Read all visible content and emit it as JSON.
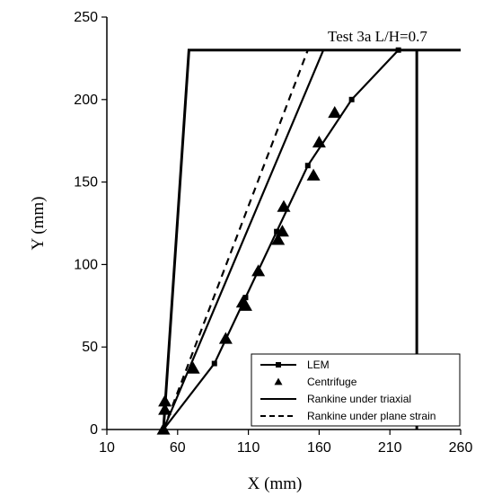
{
  "chart_data": {
    "type": "line",
    "title": "",
    "annotation": "Test 3a L/H=0.7",
    "xlabel": "X (mm)",
    "ylabel": "Y (mm)",
    "xlim": [
      10,
      260
    ],
    "ylim": [
      0,
      250
    ],
    "xticks": [
      "10",
      "60",
      "110",
      "160",
      "210",
      "260"
    ],
    "yticks": [
      "0",
      "50",
      "100",
      "150",
      "200",
      "250"
    ],
    "grid": false,
    "legend_position": "bottom-right",
    "series": [
      {
        "name": "LEM",
        "style": "solid-square-markers",
        "x": [
          50,
          86,
          108,
          130,
          152,
          183,
          216
        ],
        "y": [
          0,
          40,
          80,
          120,
          160,
          200,
          230
        ]
      },
      {
        "name": "Centrifuge",
        "style": "triangle-markers",
        "x": [
          50,
          51,
          51,
          71,
          94,
          106,
          108,
          117,
          131,
          134,
          135,
          156,
          160,
          171
        ],
        "y": [
          0,
          12,
          17,
          37,
          55,
          77,
          75,
          96,
          115,
          120,
          135,
          154,
          174,
          192
        ]
      },
      {
        "name": "Rankine under triaxial",
        "style": "solid",
        "x": [
          50,
          163
        ],
        "y": [
          0,
          230
        ]
      },
      {
        "name": "Rankine under plane strain",
        "style": "dashed",
        "x": [
          50,
          152
        ],
        "y": [
          0,
          230
        ]
      }
    ],
    "wall_outline": {
      "x": [
        50,
        68,
        260
      ],
      "y": [
        0,
        230,
        230
      ]
    },
    "vertical_wall": {
      "x": 229,
      "y": [
        0,
        230
      ]
    }
  }
}
